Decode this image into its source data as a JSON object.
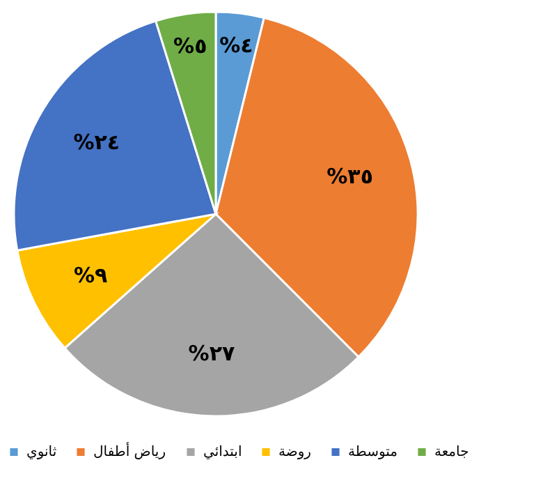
{
  "chart_data": {
    "type": "pie",
    "categories": [
      "ثانوي",
      "رياض أطفال",
      "ابتدائي",
      "روضة",
      "متوسطة",
      "جامعة"
    ],
    "values": [
      4,
      35,
      27,
      9,
      24,
      5
    ],
    "colors": [
      "#5b9bd5",
      "#ed7d31",
      "#a5a5a5",
      "#ffc000",
      "#4472c4",
      "#70ad47"
    ],
    "value_labels": [
      "%٤",
      "%٣٥",
      "%٢٧",
      "%٩",
      "%٢٤",
      "%٥"
    ],
    "legend": "bottom"
  }
}
